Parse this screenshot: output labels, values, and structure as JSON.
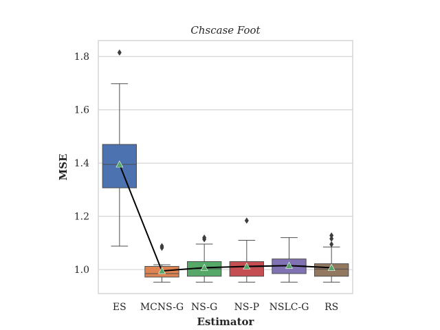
{
  "chart_data": {
    "type": "box",
    "title": "Chscase Foot",
    "xlabel": "Estimator",
    "ylabel": "MSE",
    "ylim": [
      0.91,
      1.86
    ],
    "yticks": [
      "1.0",
      "1.2",
      "1.4",
      "1.6",
      "1.8"
    ],
    "ytick_values": [
      1.0,
      1.2,
      1.4,
      1.6,
      1.8
    ],
    "grid": true,
    "categories": [
      "ES",
      "MCNS-G",
      "NS-G",
      "NS-P",
      "NSLC-G",
      "RS"
    ],
    "boxes": [
      {
        "name": "ES",
        "color": "#4c72b0",
        "whisker_low": 1.088,
        "q1": 1.307,
        "median": 1.395,
        "q3": 1.47,
        "whisker_high": 1.698,
        "mean": 1.395,
        "outliers": [
          1.815
        ]
      },
      {
        "name": "MCNS-G",
        "color": "#dd8452",
        "whisker_low": 0.953,
        "q1": 0.972,
        "median": 0.985,
        "q3": 1.012,
        "whisker_high": 1.018,
        "mean": 0.995,
        "outliers": [
          1.082,
          1.088
        ]
      },
      {
        "name": "NS-G",
        "color": "#55a868",
        "whisker_low": 0.953,
        "q1": 0.975,
        "median": 1.003,
        "q3": 1.03,
        "whisker_high": 1.096,
        "mean": 1.007,
        "outliers": [
          1.114,
          1.12
        ]
      },
      {
        "name": "NS-P",
        "color": "#c44e52",
        "whisker_low": 0.953,
        "q1": 0.975,
        "median": 1.01,
        "q3": 1.03,
        "whisker_high": 1.11,
        "mean": 1.012,
        "outliers": [
          1.184
        ]
      },
      {
        "name": "NSLC-G",
        "color": "#8172b3",
        "whisker_low": 0.953,
        "q1": 0.985,
        "median": 1.015,
        "q3": 1.04,
        "whisker_high": 1.12,
        "mean": 1.015,
        "outliers": []
      },
      {
        "name": "RS",
        "color": "#937860",
        "whisker_low": 0.953,
        "q1": 0.975,
        "median": 1.002,
        "q3": 1.022,
        "whisker_high": 1.085,
        "mean": 1.007,
        "outliers": [
          1.095,
          1.116,
          1.128
        ]
      }
    ],
    "mean_line_color": "#000000",
    "mean_marker_color": "#55a868",
    "grid_color": "#cccccc",
    "spine_color": "#cccccc"
  }
}
